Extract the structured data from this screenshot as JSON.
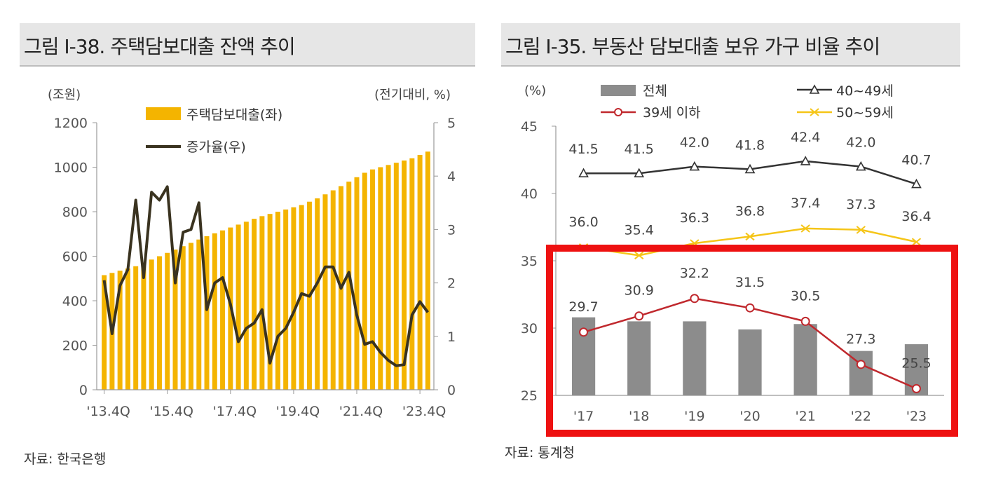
{
  "left_panel": {
    "title": "그림 Ⅰ-38. 주택담보대출 잔액 추이",
    "source": "자료: 한국은행"
  },
  "right_panel": {
    "title": "그림 Ⅰ-35. 부동산 담보대출 보유 가구 비율 추이",
    "source": "자료: 통계청"
  },
  "highlight_color": "#ee1111",
  "chart_data": [
    {
      "type": "bar",
      "subtype": "bar-line-dual-axis",
      "title": "",
      "y_unit_left": "(조원)",
      "y_unit_right": "(전기대비, %)",
      "x_tick_labels": [
        "'13.4Q",
        "'15.4Q",
        "'17.4Q",
        "'19.4Q",
        "'21.4Q",
        "'23.4Q"
      ],
      "x_tick_indices": [
        0,
        8,
        16,
        24,
        32,
        40
      ],
      "ylim_left": [
        0,
        1200
      ],
      "yticks_left": [
        0,
        200,
        400,
        600,
        800,
        1000,
        1200
      ],
      "ylim_right": [
        0,
        5
      ],
      "yticks_right": [
        0,
        1,
        2,
        3,
        4,
        5
      ],
      "grid": false,
      "legend_position": "top-center",
      "series": [
        {
          "name": "주택담보대출(좌)",
          "type": "bar",
          "axis": "left",
          "color": "#f4b400",
          "values": [
            515,
            525,
            535,
            545,
            555,
            570,
            585,
            600,
            615,
            630,
            645,
            660,
            675,
            690,
            703,
            716,
            729,
            742,
            755,
            768,
            780,
            790,
            800,
            810,
            820,
            830,
            845,
            860,
            878,
            896,
            915,
            935,
            955,
            975,
            990,
            1000,
            1010,
            1020,
            1030,
            1040,
            1055,
            1070
          ]
        },
        {
          "name": "증가율(우)",
          "type": "line",
          "axis": "right",
          "color": "#3a3320",
          "values": [
            2.05,
            1.05,
            1.95,
            2.25,
            3.55,
            2.1,
            3.7,
            3.55,
            3.8,
            2.0,
            2.95,
            3.0,
            3.5,
            1.5,
            2.0,
            2.1,
            1.6,
            0.9,
            1.15,
            1.25,
            1.5,
            0.5,
            1.0,
            1.15,
            1.45,
            1.8,
            1.75,
            2.0,
            2.3,
            2.3,
            1.9,
            2.2,
            1.4,
            0.85,
            0.9,
            0.7,
            0.55,
            0.45,
            0.47,
            1.4,
            1.65,
            1.45
          ]
        }
      ]
    },
    {
      "type": "bar",
      "subtype": "bar-line-combo",
      "title": "",
      "y_unit": "(%)",
      "categories": [
        "'17",
        "'18",
        "'19",
        "'20",
        "'21",
        "'22",
        "'23"
      ],
      "ylim": [
        25,
        45
      ],
      "yticks": [
        25,
        30,
        35,
        40,
        45
      ],
      "grid": false,
      "legend_position": "top",
      "series": [
        {
          "name": "전체",
          "type": "bar",
          "color": "#8c8c8c",
          "values": [
            30.8,
            30.5,
            30.5,
            29.9,
            30.3,
            28.3,
            28.8
          ]
        },
        {
          "name": "40~49세",
          "type": "line",
          "marker": "triangle",
          "color": "#333333",
          "values": [
            41.5,
            41.5,
            42.0,
            41.8,
            42.4,
            42.0,
            40.7
          ],
          "labels": [
            "41.5",
            "41.5",
            "42.0",
            "41.8",
            "42.4",
            "42.0",
            "40.7"
          ]
        },
        {
          "name": "39세 이하",
          "type": "line",
          "marker": "circle",
          "color": "#c0282d",
          "values": [
            29.7,
            30.9,
            32.2,
            31.5,
            30.5,
            27.3,
            25.5
          ],
          "labels": [
            "29.7",
            "30.9",
            "32.2",
            "31.5",
            "30.5",
            "27.3",
            "25.5"
          ]
        },
        {
          "name": "50~59세",
          "type": "line",
          "marker": "x",
          "color": "#f5c518",
          "values": [
            36.0,
            35.4,
            36.3,
            36.8,
            37.4,
            37.3,
            36.4
          ],
          "labels": [
            "36.0",
            "35.4",
            "36.3",
            "36.8",
            "37.4",
            "37.3",
            "36.4"
          ]
        }
      ]
    }
  ]
}
